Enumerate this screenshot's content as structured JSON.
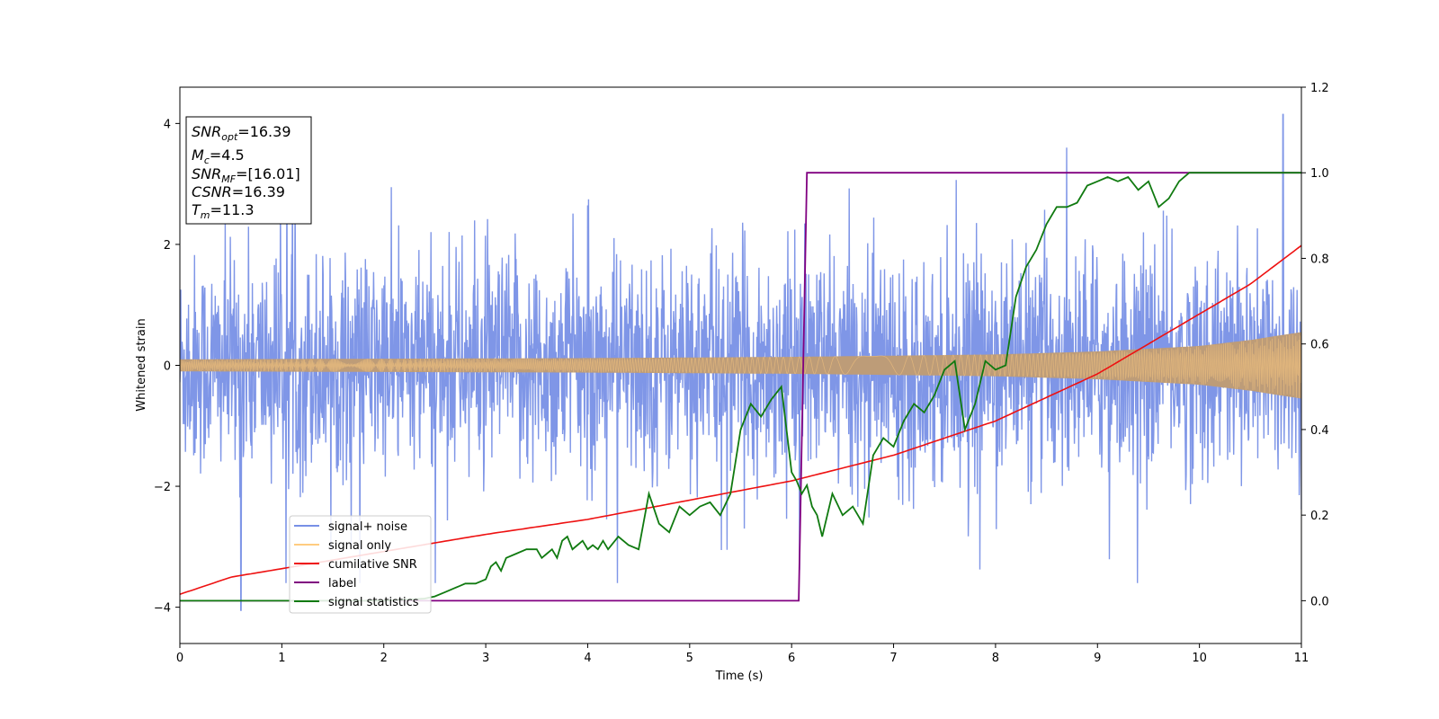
{
  "chart_data": {
    "type": "line",
    "xlabel": "Time (s)",
    "ylabel": "Whitened strain",
    "xlim": [
      0,
      11
    ],
    "ylim_left": [
      -4.6,
      4.6
    ],
    "ylim_right": [
      -0.1,
      1.2
    ],
    "xticks": [
      "0",
      "1",
      "2",
      "3",
      "4",
      "5",
      "6",
      "7",
      "8",
      "9",
      "10",
      "11"
    ],
    "yticks_left": [
      "−4",
      "−2",
      "0",
      "2",
      "4"
    ],
    "yticks_right": [
      "0.0",
      "0.2",
      "0.4",
      "0.6",
      "0.8",
      "1.0",
      "1.2"
    ],
    "legend_position": "lower left",
    "colors": {
      "signal_noise": "#7890e6",
      "signal_only": "#ffcc80",
      "signal_only_overlap": "#bd9c78",
      "cumulative_snr": "#ee1111",
      "label": "#800080",
      "signal_statistics": "#107a10"
    },
    "series": [
      {
        "name": "signal+ noise",
        "axis": "left",
        "description_values": "noise band roughly ±1.2 with spikes to ±3.5; extremes 4.15 at t=10.82, -4.05 at t=0.6"
      },
      {
        "name": "signal only",
        "axis": "left",
        "amplitude_envelope": {
          "x": [
            0,
            2,
            4,
            6,
            8,
            9,
            10,
            10.5,
            11
          ],
          "amp": [
            0.1,
            0.11,
            0.12,
            0.14,
            0.18,
            0.23,
            0.32,
            0.42,
            0.55
          ]
        }
      },
      {
        "name": "cumilative SNR",
        "axis": "right",
        "x": [
          0,
          0.5,
          1,
          2,
          3,
          4,
          5,
          6,
          7,
          8,
          9,
          9.5,
          10,
          10.5,
          11
        ],
        "y": [
          0.015,
          0.055,
          0.075,
          0.115,
          0.155,
          0.19,
          0.235,
          0.28,
          0.34,
          0.42,
          0.53,
          0.6,
          0.67,
          0.74,
          0.83
        ]
      },
      {
        "name": "label",
        "axis": "right",
        "x": [
          0,
          6.07,
          6.15,
          11
        ],
        "y": [
          0,
          0,
          1,
          1
        ]
      },
      {
        "name": "signal statistics",
        "axis": "right",
        "x": [
          0,
          0.5,
          1,
          1.5,
          2,
          2.2,
          2.4,
          2.5,
          2.6,
          2.7,
          2.8,
          2.9,
          3.0,
          3.05,
          3.1,
          3.15,
          3.2,
          3.3,
          3.4,
          3.5,
          3.55,
          3.6,
          3.65,
          3.7,
          3.75,
          3.8,
          3.85,
          3.9,
          3.95,
          4.0,
          4.05,
          4.1,
          4.15,
          4.2,
          4.3,
          4.4,
          4.5,
          4.6,
          4.7,
          4.8,
          4.9,
          5.0,
          5.1,
          5.2,
          5.3,
          5.4,
          5.5,
          5.6,
          5.7,
          5.8,
          5.9,
          6.0,
          6.05,
          6.1,
          6.15,
          6.2,
          6.25,
          6.3,
          6.4,
          6.5,
          6.6,
          6.7,
          6.8,
          6.9,
          7.0,
          7.1,
          7.2,
          7.3,
          7.4,
          7.5,
          7.6,
          7.7,
          7.8,
          7.9,
          8.0,
          8.1,
          8.2,
          8.3,
          8.4,
          8.5,
          8.6,
          8.7,
          8.8,
          8.9,
          9.0,
          9.1,
          9.2,
          9.3,
          9.4,
          9.5,
          9.6,
          9.7,
          9.8,
          9.9,
          10,
          10.5,
          11
        ],
        "y": [
          0,
          0,
          0,
          0,
          0.0,
          0.002,
          0.005,
          0.01,
          0.02,
          0.03,
          0.04,
          0.04,
          0.05,
          0.08,
          0.09,
          0.07,
          0.1,
          0.11,
          0.12,
          0.12,
          0.1,
          0.11,
          0.12,
          0.1,
          0.14,
          0.15,
          0.12,
          0.13,
          0.14,
          0.12,
          0.13,
          0.12,
          0.14,
          0.12,
          0.15,
          0.13,
          0.12,
          0.25,
          0.18,
          0.16,
          0.22,
          0.2,
          0.22,
          0.23,
          0.2,
          0.25,
          0.4,
          0.46,
          0.43,
          0.47,
          0.5,
          0.3,
          0.28,
          0.25,
          0.27,
          0.22,
          0.2,
          0.15,
          0.25,
          0.2,
          0.22,
          0.18,
          0.34,
          0.38,
          0.36,
          0.42,
          0.46,
          0.44,
          0.48,
          0.54,
          0.56,
          0.4,
          0.46,
          0.56,
          0.54,
          0.55,
          0.71,
          0.78,
          0.82,
          0.88,
          0.92,
          0.92,
          0.93,
          0.97,
          0.98,
          0.99,
          0.98,
          0.99,
          0.96,
          0.98,
          0.92,
          0.94,
          0.98,
          1.0,
          1.0,
          1.0,
          1.0
        ]
      }
    ],
    "annotation": [
      {
        "base": "SNR",
        "sub": "opt",
        "value": "=16.39"
      },
      {
        "base": "M",
        "sub": "c",
        "value": "=4.5"
      },
      {
        "base": "SNR",
        "sub": "MF",
        "value": "=[16.01]"
      },
      {
        "base": "CSNR",
        "sub": "",
        "value": "=16.39"
      },
      {
        "base": "T",
        "sub": "m",
        "value": "=11.3"
      }
    ]
  }
}
